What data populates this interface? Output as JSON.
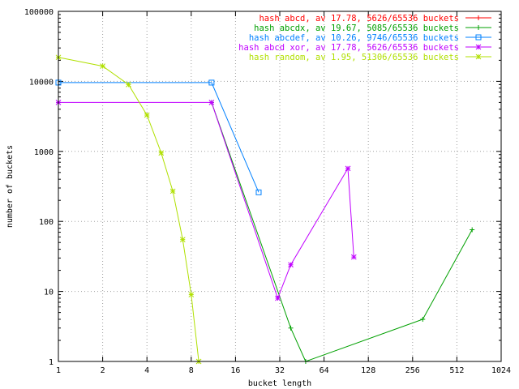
{
  "chart_data": {
    "type": "line",
    "title": "",
    "xlabel": "bucket length",
    "ylabel": "number of buckets",
    "x_scale": "log2",
    "y_scale": "log10",
    "xlim": [
      1,
      1024
    ],
    "ylim": [
      1,
      100000
    ],
    "x_ticks": [
      1,
      2,
      4,
      8,
      16,
      32,
      64,
      128,
      256,
      512,
      1024
    ],
    "y_ticks": [
      1,
      10,
      100,
      1000,
      10000,
      100000
    ],
    "x_tick_labels": [
      "1",
      "2",
      "4",
      "8",
      "16",
      "32",
      "64",
      "128",
      "256",
      "512",
      "1024"
    ],
    "y_tick_labels": [
      "1",
      "10",
      "100",
      "1000",
      "10000",
      "100000"
    ],
    "grid": true,
    "legend_position": "top-right",
    "series": [
      {
        "name": "hash abcd, av 17.78, 5626/65536 buckets",
        "color": "#ff0000",
        "marker": "plus",
        "x": [],
        "y": []
      },
      {
        "name": "hash abcdx, av 19.67, 5085/65536 buckets",
        "color": "#00a000",
        "marker": "plus",
        "x": [
          11,
          38,
          48,
          300,
          650
        ],
        "y": [
          5000,
          3,
          1,
          4,
          76
        ]
      },
      {
        "name": "hash abcdef, av 10.26, 9746/65536 buckets",
        "color": "#0080ff",
        "marker": "square",
        "x": [
          1,
          11,
          23
        ],
        "y": [
          9600,
          9600,
          260
        ]
      },
      {
        "name": "hash abcd xor, av 17.78, 5626/65536 buckets",
        "color": "#c000ff",
        "marker": "star",
        "x": [
          1,
          11,
          31,
          38,
          93,
          102
        ],
        "y": [
          5000,
          5000,
          8,
          24,
          570,
          31
        ]
      },
      {
        "name": "hash random, av 1.95, 51306/65536 buckets",
        "color": "#b0e000",
        "marker": "star",
        "x": [
          1,
          2,
          3,
          4,
          5,
          6,
          7,
          8,
          9
        ],
        "y": [
          22000,
          16500,
          9000,
          3300,
          950,
          270,
          55,
          9,
          1
        ]
      }
    ]
  }
}
